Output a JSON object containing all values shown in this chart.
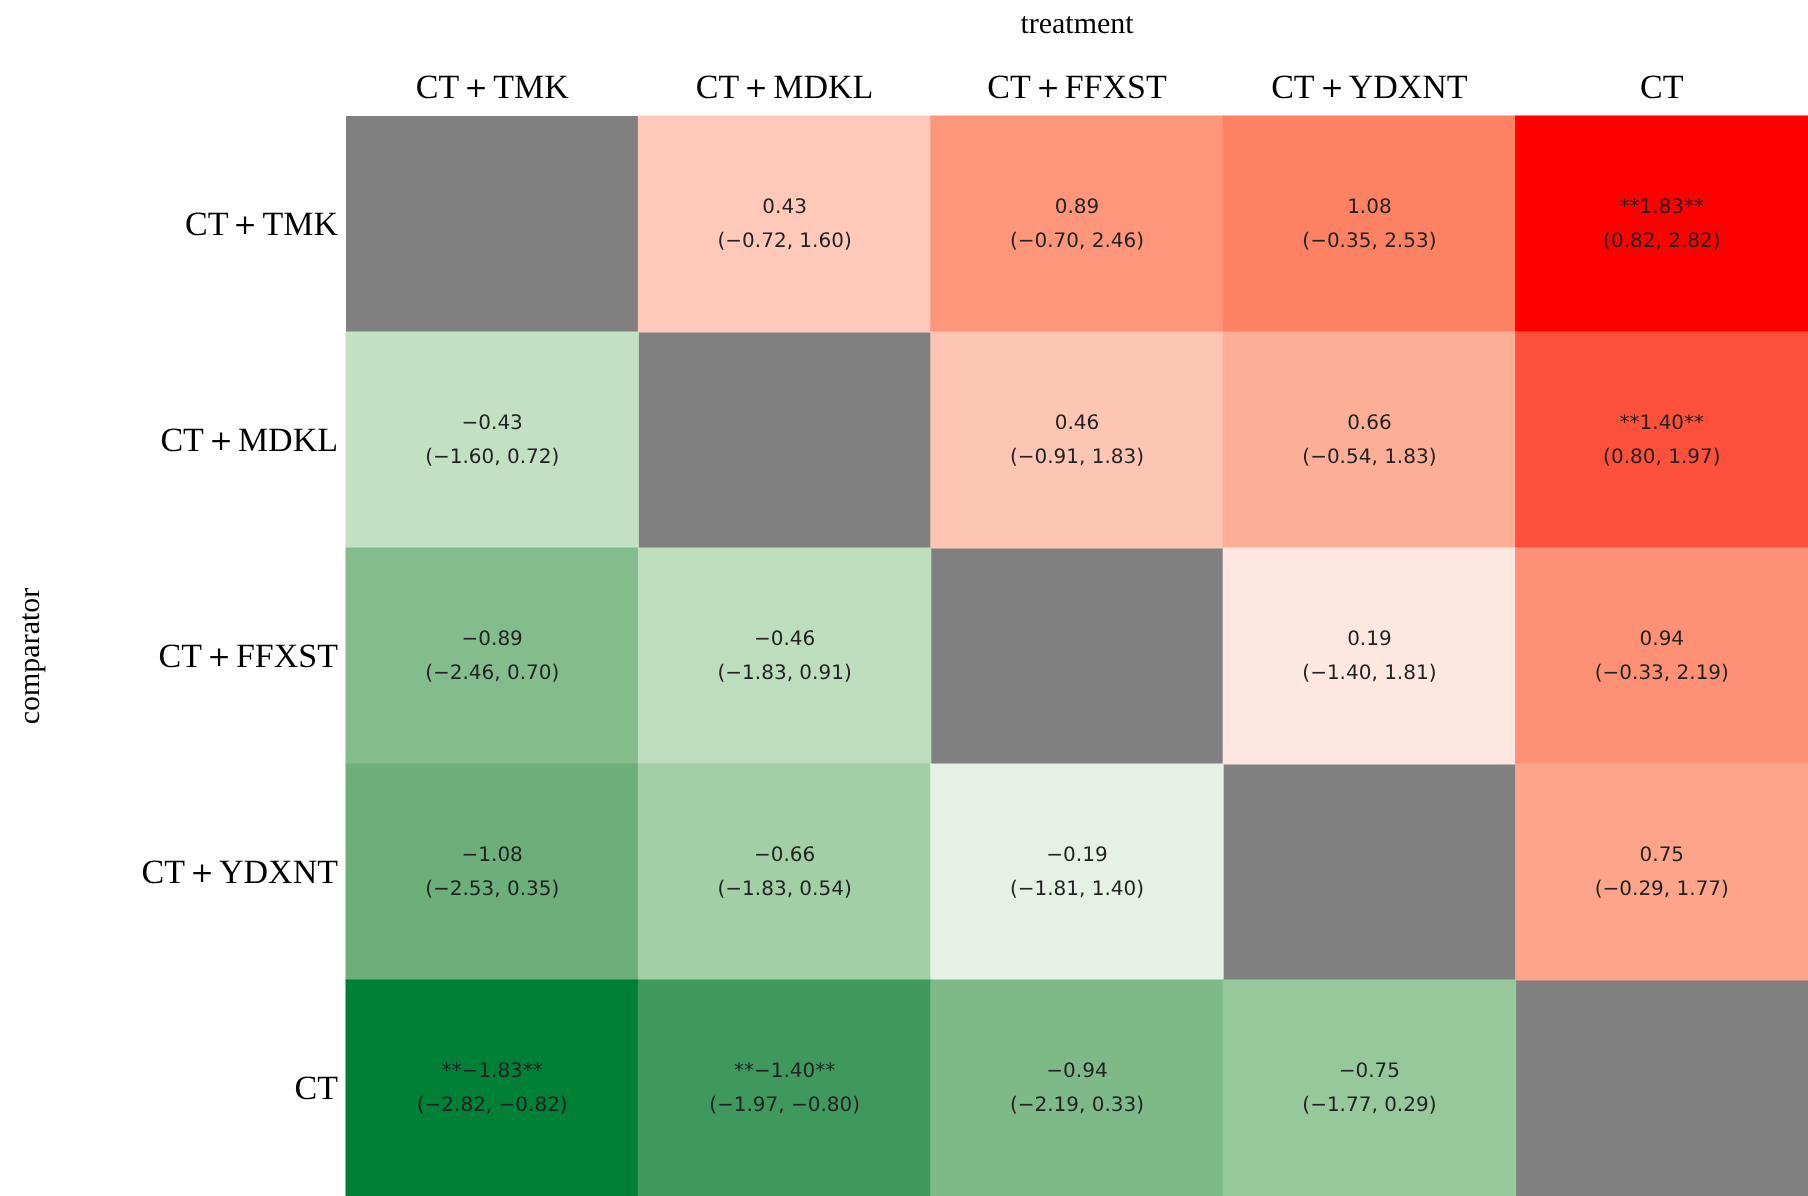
{
  "chart_data": {
    "type": "heatmap",
    "xlabel": "treatment",
    "ylabel": "comparator",
    "categories": [
      "CT＋TMK",
      "CT＋MDKL",
      "CT＋FFXST",
      "CT＋YDXNT",
      "CT"
    ],
    "y_categories": [
      "CT＋TMK",
      "CT＋MDKL",
      "CT＋FFXST",
      "CT＋YDXNT",
      "CT"
    ],
    "cells": [
      [
        null,
        0.43,
        0.89,
        1.08,
        1.83
      ],
      [
        -0.43,
        null,
        0.46,
        0.66,
        1.4
      ],
      [
        -0.89,
        -0.46,
        null,
        0.19,
        0.94
      ],
      [
        -1.08,
        -0.66,
        -0.19,
        null,
        0.75
      ],
      [
        -1.83,
        -1.4,
        -0.94,
        -0.75,
        null
      ]
    ],
    "cell_labels": [
      [
        null,
        "0.43",
        "0.89",
        "1.08",
        "**1.83**"
      ],
      [
        "−0.43",
        null,
        "0.46",
        "0.66",
        "**1.40**"
      ],
      [
        "−0.89",
        "−0.46",
        null,
        "0.19",
        "0.94"
      ],
      [
        "−1.08",
        "−0.66",
        "−0.19",
        null,
        "0.75"
      ],
      [
        "**−1.83**",
        "**−1.40**",
        "−0.94",
        "−0.75",
        null
      ]
    ],
    "annotations": [
      "(−0.72, 1.60)",
      "(−0.70, 2.46)",
      "(−0.35, 2.53)",
      "(0.82, 2.82)",
      "(−1.60, 0.72)",
      "(−0.91, 1.83)",
      "(−0.54, 1.83)",
      "(0.80, 1.97)",
      "(−2.46, 0.70)",
      "(−1.83, 0.91)",
      "(−1.40, 1.81)",
      "(−0.33, 2.19)",
      "(−2.53, 0.35)",
      "(−1.83, 0.54)",
      "(−1.81, 1.40)",
      "(−0.29, 1.77)",
      "(−2.82, −0.82)",
      "(−1.97, −0.80)",
      "(−2.19, 0.33)",
      "(−1.77, 0.29)"
    ]
  }
}
